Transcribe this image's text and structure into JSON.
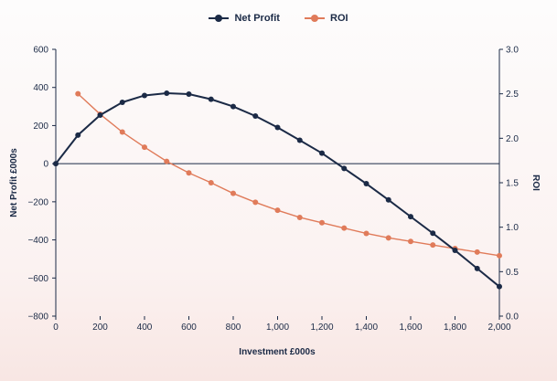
{
  "chart_data": {
    "type": "line",
    "title": "",
    "x": [
      0,
      100,
      200,
      300,
      400,
      500,
      600,
      700,
      800,
      900,
      1000,
      1100,
      1200,
      1300,
      1400,
      1500,
      1600,
      1700,
      1800,
      1900,
      2000
    ],
    "series": [
      {
        "name": "Net Profit",
        "axis": "left",
        "color": "#1b2a46",
        "x": [
          0,
          100,
          200,
          300,
          400,
          500,
          600,
          700,
          800,
          900,
          1000,
          1100,
          1200,
          1300,
          1400,
          1500,
          1600,
          1700,
          1800,
          1900,
          2000
        ],
        "values": [
          0,
          150,
          255,
          322,
          358,
          370,
          365,
          338,
          300,
          250,
          190,
          123,
          55,
          -25,
          -105,
          -190,
          -278,
          -365,
          -455,
          -550,
          -645
        ]
      },
      {
        "name": "ROI",
        "axis": "right",
        "color": "#e07b5a",
        "x": [
          100,
          200,
          300,
          400,
          500,
          600,
          700,
          800,
          900,
          1000,
          1100,
          1200,
          1300,
          1400,
          1500,
          1600,
          1700,
          1800,
          1900,
          2000
        ],
        "values": [
          2.5,
          2.27,
          2.07,
          1.9,
          1.74,
          1.61,
          1.5,
          1.38,
          1.28,
          1.19,
          1.11,
          1.05,
          0.99,
          0.93,
          0.88,
          0.84,
          0.8,
          0.76,
          0.72,
          0.68
        ]
      }
    ],
    "xlabel": "Investment £000s",
    "ylabel": "Net Profit £000s",
    "y2label": "ROI",
    "xlim": [
      0,
      2000
    ],
    "ylim": [
      -800,
      600
    ],
    "y2lim": [
      0,
      3
    ],
    "xticks": [
      "0",
      "200",
      "400",
      "600",
      "800",
      "1,000",
      "1,200",
      "1,400",
      "1,600",
      "1,800",
      "2,000"
    ],
    "yticks": [
      "−800",
      "−600",
      "−400",
      "−200",
      "0",
      "200",
      "400",
      "600"
    ],
    "y2ticks": [
      "0.0",
      "0.5",
      "1.0",
      "1.5",
      "2.0",
      "2.5",
      "3.0"
    ],
    "legend": [
      "Net Profit",
      "ROI"
    ]
  }
}
